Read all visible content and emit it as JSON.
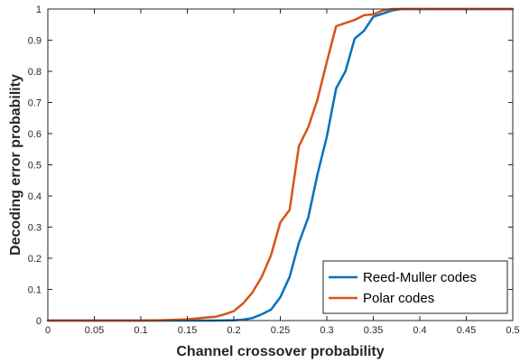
{
  "chart_data": {
    "type": "line",
    "title": "",
    "xlabel": "Channel crossover probability",
    "ylabel": "Decoding error probability",
    "xlim": [
      0,
      0.5
    ],
    "ylim": [
      0,
      1
    ],
    "xticks": [
      "0",
      "0.05",
      "0.1",
      "0.15",
      "0.2",
      "0.25",
      "0.3",
      "0.35",
      "0.4",
      "0.45",
      "0.5"
    ],
    "yticks": [
      "0",
      "0.1",
      "0.2",
      "0.3",
      "0.4",
      "0.5",
      "0.6",
      "0.7",
      "0.8",
      "0.9",
      "1"
    ],
    "grid": false,
    "legend_position": "bottom-right",
    "series": [
      {
        "name": "Reed-Muller codes",
        "color": "#0072BD",
        "x": [
          0,
          0.05,
          0.1,
          0.15,
          0.18,
          0.2,
          0.21,
          0.22,
          0.23,
          0.24,
          0.25,
          0.26,
          0.27,
          0.28,
          0.29,
          0.3,
          0.31,
          0.32,
          0.33,
          0.34,
          0.35,
          0.36,
          0.37,
          0.38,
          0.39,
          0.4,
          0.45,
          0.5
        ],
        "y": [
          0,
          0,
          0,
          0,
          0,
          0.001,
          0.003,
          0.008,
          0.02,
          0.035,
          0.075,
          0.14,
          0.25,
          0.33,
          0.47,
          0.59,
          0.745,
          0.8,
          0.905,
          0.93,
          0.975,
          0.985,
          0.995,
          1,
          1,
          1,
          1,
          1
        ]
      },
      {
        "name": "Polar codes",
        "color": "#D95319",
        "x": [
          0,
          0.05,
          0.1,
          0.12,
          0.15,
          0.17,
          0.18,
          0.19,
          0.2,
          0.21,
          0.22,
          0.23,
          0.24,
          0.25,
          0.26,
          0.27,
          0.28,
          0.29,
          0.3,
          0.31,
          0.32,
          0.33,
          0.34,
          0.35,
          0.36,
          0.37,
          0.4,
          0.45,
          0.5
        ],
        "y": [
          0,
          0,
          0,
          0.001,
          0.004,
          0.01,
          0.012,
          0.02,
          0.03,
          0.055,
          0.09,
          0.14,
          0.21,
          0.315,
          0.355,
          0.56,
          0.62,
          0.71,
          0.83,
          0.945,
          0.955,
          0.965,
          0.98,
          0.983,
          0.995,
          1,
          1,
          1,
          1
        ]
      }
    ]
  }
}
